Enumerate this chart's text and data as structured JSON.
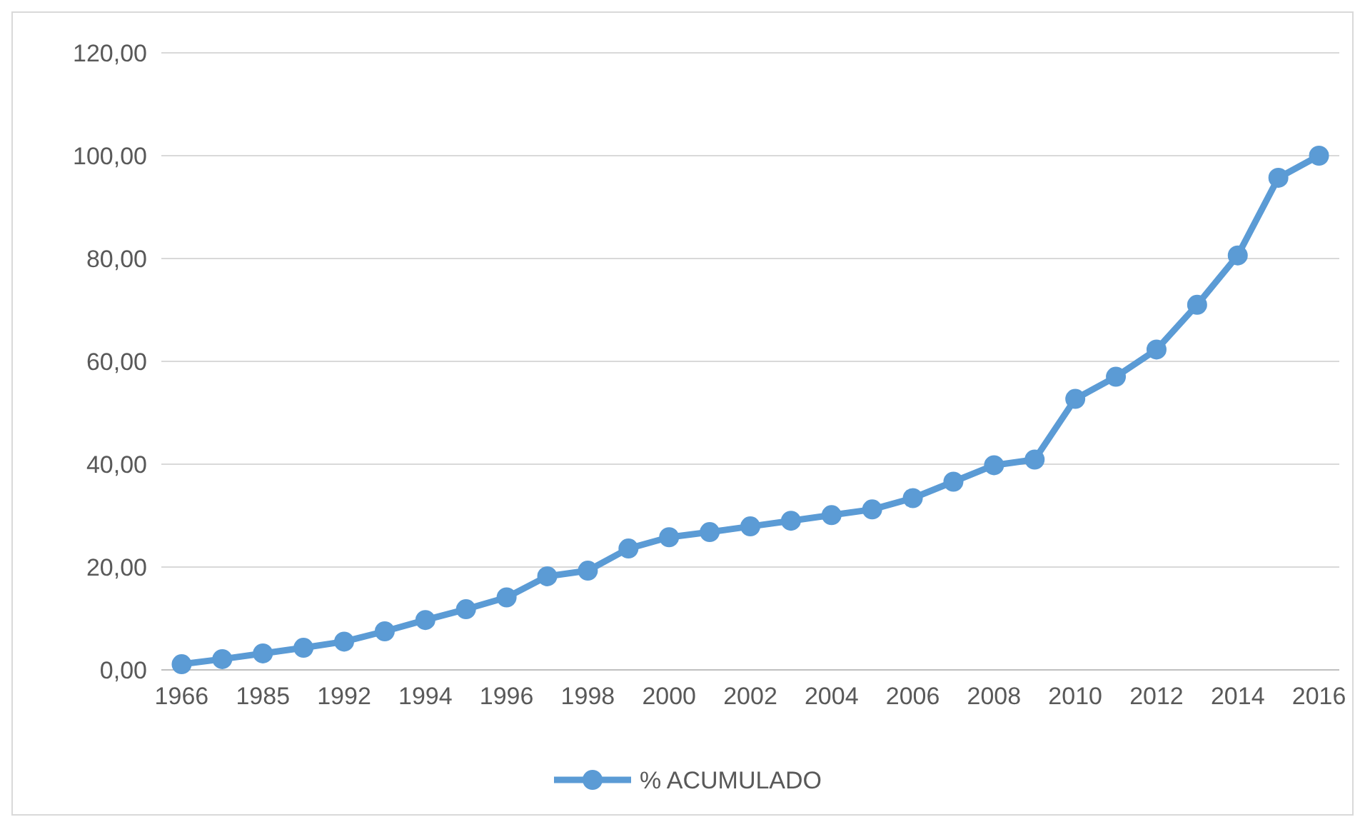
{
  "chart_data": {
    "type": "line",
    "categories": [
      "1966",
      null,
      "1985",
      null,
      "1992",
      null,
      "1994",
      null,
      "1996",
      null,
      "1998",
      null,
      "2000",
      null,
      "2002",
      null,
      "2004",
      null,
      "2006",
      null,
      "2008",
      null,
      "2010",
      null,
      "2012",
      null,
      "2014",
      null,
      "2016"
    ],
    "series": [
      {
        "name": "% ACUMULADO",
        "color": "#5b9bd5",
        "values": [
          1.1,
          2.1,
          3.2,
          4.3,
          5.5,
          7.5,
          9.7,
          11.8,
          14.1,
          18.2,
          19.3,
          23.6,
          25.8,
          26.8,
          27.9,
          29.0,
          30.1,
          31.2,
          33.4,
          36.6,
          39.8,
          40.9,
          52.7,
          57.0,
          62.3,
          71.0,
          80.6,
          95.7,
          100.0
        ]
      }
    ],
    "ylim": [
      0,
      120
    ],
    "yticks": [
      {
        "value": 0,
        "label": "0,00"
      },
      {
        "value": 20,
        "label": "20,00"
      },
      {
        "value": 40,
        "label": "40,00"
      },
      {
        "value": 60,
        "label": "60,00"
      },
      {
        "value": 80,
        "label": "80,00"
      },
      {
        "value": 100,
        "label": "100,00"
      },
      {
        "value": 120,
        "label": "120,00"
      }
    ],
    "grid": "y",
    "legend": "bottom",
    "marker": "circle",
    "line_style": "solid"
  }
}
